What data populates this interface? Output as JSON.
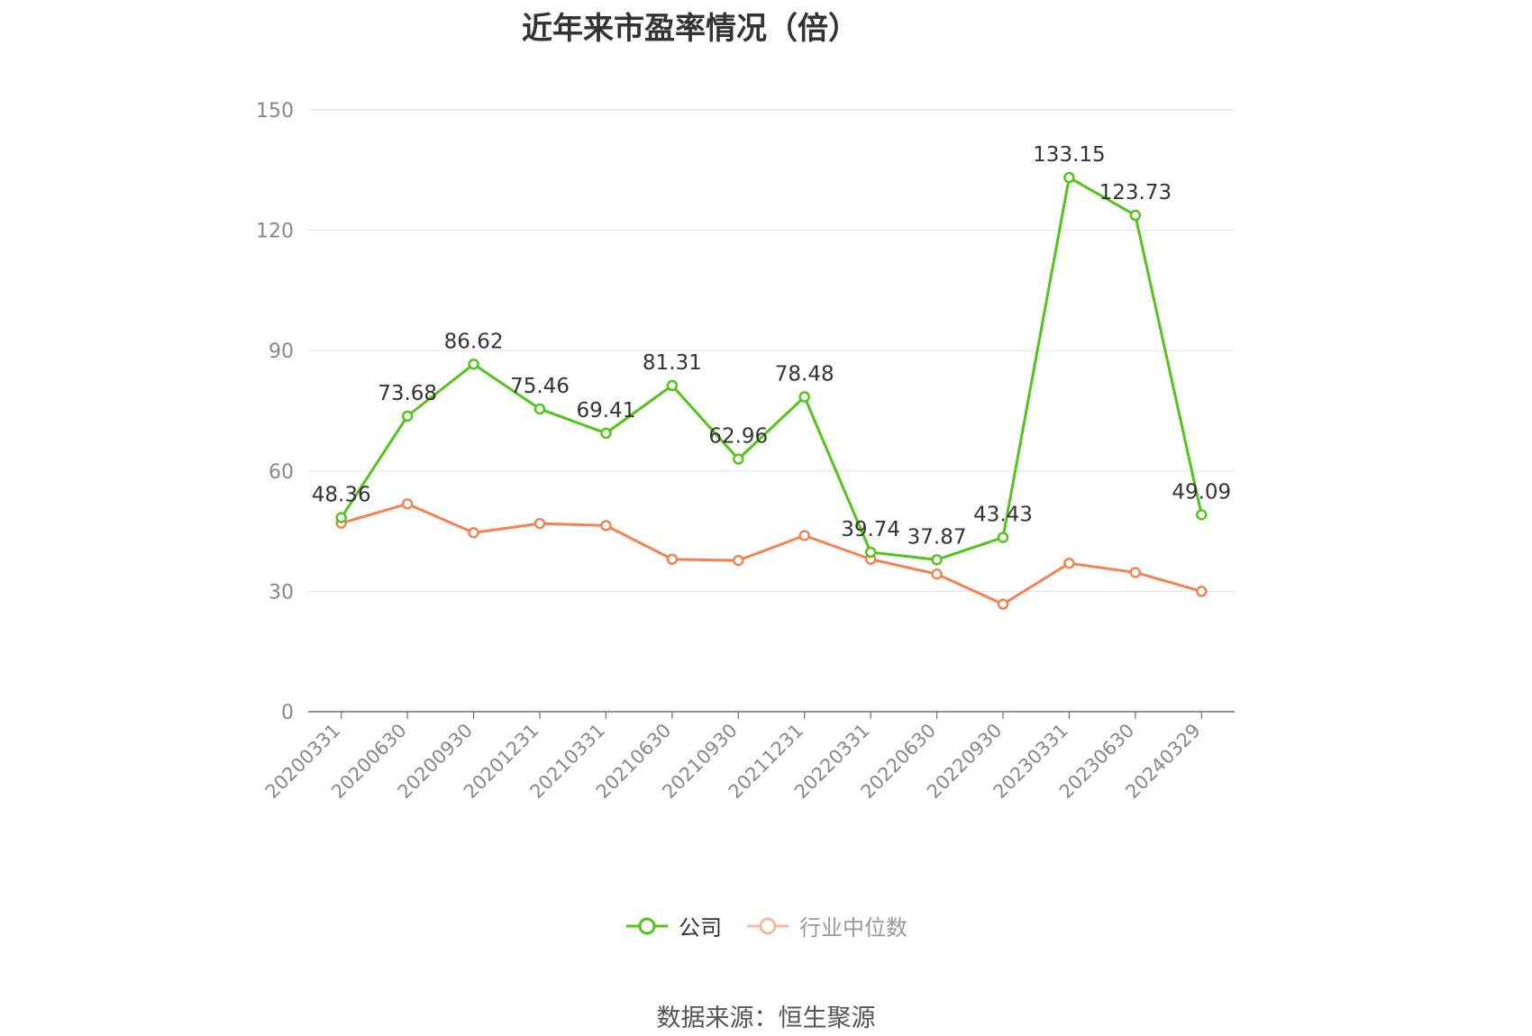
{
  "title": "近年来市盈率情况（倍）",
  "source": "数据来源：恒生聚源",
  "colors": {
    "company": "#52c41a",
    "industry": "#f28352",
    "industry_legend": "#f8b89a",
    "grid": "#e0e6f1",
    "axis": "#6e7079"
  },
  "chart_data": {
    "type": "line",
    "title": "近年来市盈率情况（倍）",
    "x": [
      "20200331",
      "20200630",
      "20200930",
      "20201231",
      "20210331",
      "20210630",
      "20210930",
      "20211231",
      "20220331",
      "20220630",
      "20220930",
      "20230331",
      "20230630",
      "20240329"
    ],
    "y_ticks": [
      "0",
      "30",
      "60",
      "90",
      "120",
      "150"
    ],
    "ylim": [
      0,
      150
    ],
    "grid": true,
    "legend_position": "bottom",
    "series": [
      {
        "name": "公司",
        "values": [
          48.36,
          73.68,
          86.62,
          75.46,
          69.41,
          81.31,
          62.96,
          78.48,
          39.74,
          37.87,
          43.43,
          133.15,
          123.73,
          49.09
        ],
        "labels": [
          "48.36",
          "73.68",
          "86.62",
          "75.46",
          "69.41",
          "81.31",
          "62.96",
          "78.48",
          "39.74",
          "37.87",
          "43.43",
          "133.15",
          "123.73",
          "49.09"
        ]
      },
      {
        "name": "行业中位数",
        "values": [
          47.0,
          51.8,
          44.6,
          46.9,
          46.4,
          38.0,
          37.7,
          43.9,
          38.0,
          34.3,
          26.8,
          37.0,
          34.7,
          30.0
        ]
      }
    ]
  },
  "legend": [
    {
      "label": "公司"
    },
    {
      "label": "行业中位数"
    }
  ]
}
